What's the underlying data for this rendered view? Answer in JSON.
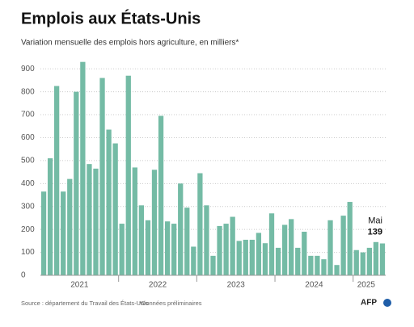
{
  "chart_data": {
    "type": "bar",
    "title": "Emplois aux États-Unis",
    "subtitle": "Variation mensuelle des emplois hors agriculture, en milliers*",
    "categories": [
      null,
      null,
      null,
      null,
      null,
      null,
      "2021",
      null,
      null,
      null,
      null,
      null,
      null,
      null,
      null,
      null,
      null,
      null,
      "2022",
      null,
      null,
      null,
      null,
      null,
      null,
      null,
      null,
      null,
      null,
      null,
      "2023",
      null,
      null,
      null,
      null,
      null,
      null,
      null,
      null,
      null,
      null,
      null,
      "2024",
      null,
      null,
      null,
      null,
      null,
      null,
      null,
      "2025",
      null,
      null
    ],
    "values": [
      365,
      510,
      825,
      365,
      420,
      800,
      930,
      485,
      465,
      860,
      635,
      575,
      225,
      870,
      470,
      305,
      240,
      460,
      695,
      235,
      225,
      400,
      295,
      125,
      445,
      305,
      85,
      215,
      225,
      255,
      150,
      155,
      155,
      185,
      140,
      270,
      120,
      220,
      245,
      120,
      190,
      85,
      85,
      70,
      240,
      45,
      260,
      320,
      110,
      100,
      120,
      145,
      139
    ],
    "color": "#74bba5",
    "ylim": [
      0,
      950
    ],
    "yticks": [
      0,
      100,
      200,
      300,
      400,
      500,
      600,
      700,
      800,
      900
    ],
    "grid": true,
    "annotation": "Mai",
    "source": "Source : département du Travail des États-Unis",
    "note": "*Données préliminaires",
    "logo": "AFP"
  }
}
